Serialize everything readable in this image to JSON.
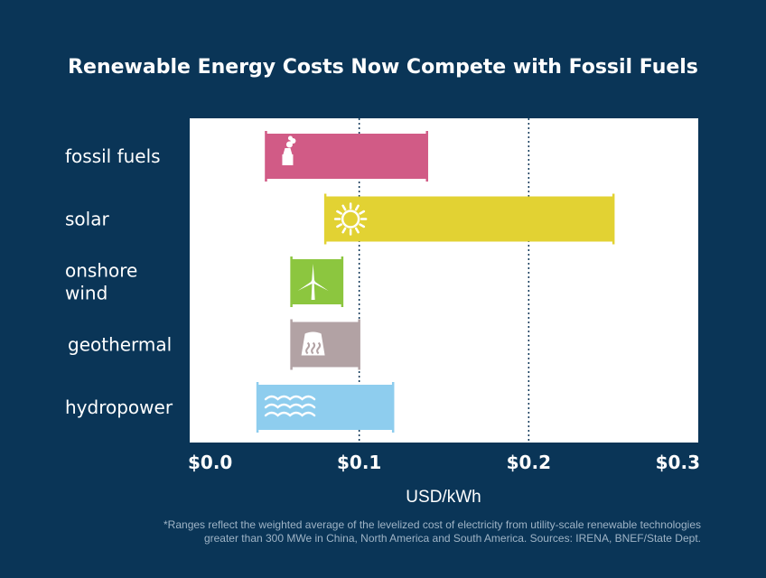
{
  "chart_data": {
    "type": "bar",
    "subtype": "floating-range",
    "title": "Renewable Energy Costs Now Compete with Fossil Fuels",
    "xlabel": "USD/kWh",
    "xlim": [
      0,
      0.3
    ],
    "x_ticks": [
      "$0.0",
      "$0.1",
      "$0.2",
      "$0.3"
    ],
    "x_tick_values": [
      0,
      0.1,
      0.2,
      0.3
    ],
    "gridlines": [
      0.1,
      0.2
    ],
    "categories": [
      "fossil fuels",
      "solar",
      "onshore\nwind",
      "geothermal",
      "hydropower"
    ],
    "series": [
      {
        "ranges": [
          {
            "category": "fossil fuels",
            "low": 0.045,
            "high": 0.14,
            "color": "#d15b86",
            "icon": "factory-icon"
          },
          {
            "category": "solar",
            "low": 0.08,
            "high": 0.25,
            "color": "#e2d233",
            "icon": "sun-icon"
          },
          {
            "category": "onshore\nwind",
            "low": 0.06,
            "high": 0.09,
            "color": "#8cc63f",
            "icon": "wind-turbine-icon"
          },
          {
            "category": "geothermal",
            "low": 0.06,
            "high": 0.1,
            "color": "#b2a2a4",
            "icon": "geothermal-icon"
          },
          {
            "category": "hydropower",
            "low": 0.04,
            "high": 0.12,
            "color": "#8ecdee",
            "icon": "water-waves-icon"
          }
        ]
      }
    ]
  },
  "footnote_lines": [
    "*Ranges reflect the weighted average of the levelized cost of electricity from utility-scale renewable technologies",
    "greater than 300 MWe in China, North America and South America.  Sources: IRENA, BNEF/State Dept."
  ],
  "colors": {
    "background": "#0a3557",
    "plot_area": "#ffffff",
    "gridline": "#0a3557",
    "text": "#ffffff",
    "footnote": "#9fb4c6"
  }
}
